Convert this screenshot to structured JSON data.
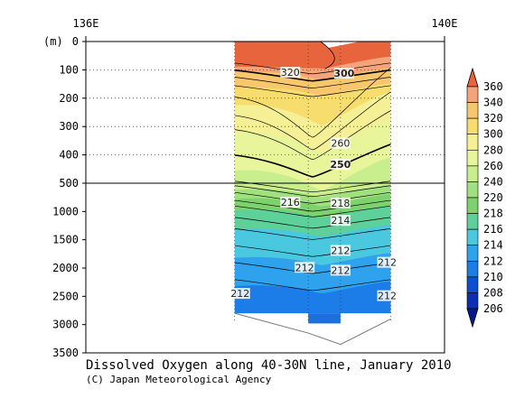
{
  "chart_data": {
    "type": "heatmap",
    "title": "Dissolved Oxygen along 40-30N line, January 2010",
    "credit": "(C) Japan Meteorological Agency",
    "x_axis": {
      "top_ticks": [
        "136E",
        "140E"
      ]
    },
    "y_axis": {
      "unit": "(m)",
      "upper_ticks": [
        "0",
        "100",
        "200",
        "300",
        "400",
        "500"
      ],
      "lower_ticks": [
        "1000",
        "1500",
        "2000",
        "2500",
        "3000",
        "3500"
      ],
      "upper_range": [
        0,
        500
      ],
      "lower_range": [
        500,
        3500
      ],
      "inverted": true
    },
    "colorbar": {
      "levels": [
        "360",
        "340",
        "320",
        "300",
        "280",
        "260",
        "240",
        "220",
        "218",
        "216",
        "214",
        "212",
        "210",
        "208",
        "206"
      ],
      "colors": [
        "#f4a37a",
        "#f8c66c",
        "#f7dc6e",
        "#f5ef96",
        "#e9f59b",
        "#c9ee8e",
        "#a0e07e",
        "#7ed26d",
        "#5ed09a",
        "#49c8e0",
        "#2fa2ee",
        "#1c7ce8",
        "#0c4fd2",
        "#0a2fb4"
      ],
      "extend_top": "#e8643c",
      "extend_bottom": "#061a8c"
    },
    "contour_labels": [
      {
        "value": "320",
        "x_frac": 0.57,
        "depth": 115
      },
      {
        "value": "300",
        "x_frac": 0.72,
        "depth": 118,
        "bold": true
      },
      {
        "value": "260",
        "x_frac": 0.71,
        "depth": 365
      },
      {
        "value": "250",
        "x_frac": 0.71,
        "depth": 440,
        "bold": true
      },
      {
        "value": "216",
        "x_frac": 0.57,
        "depth": 870
      },
      {
        "value": "218",
        "x_frac": 0.71,
        "depth": 880
      },
      {
        "value": "214",
        "x_frac": 0.71,
        "depth": 1190
      },
      {
        "value": "212",
        "x_frac": 0.71,
        "depth": 1720
      },
      {
        "value": "212",
        "x_frac": 0.61,
        "depth": 2020
      },
      {
        "value": "212",
        "x_frac": 0.71,
        "depth": 2070
      },
      {
        "value": "212",
        "x_frac": 0.84,
        "depth": 1930
      },
      {
        "value": "212",
        "x_frac": 0.43,
        "depth": 2480
      },
      {
        "value": "212",
        "x_frac": 0.84,
        "depth": 2520
      }
    ],
    "colored_x_range_frac": [
      0.415,
      0.85
    ],
    "section_depth_max": 2800,
    "bottom_depth_profile": [
      [
        0.415,
        2800
      ],
      [
        0.62,
        3150
      ],
      [
        0.71,
        3350
      ],
      [
        0.85,
        2900
      ]
    ]
  }
}
